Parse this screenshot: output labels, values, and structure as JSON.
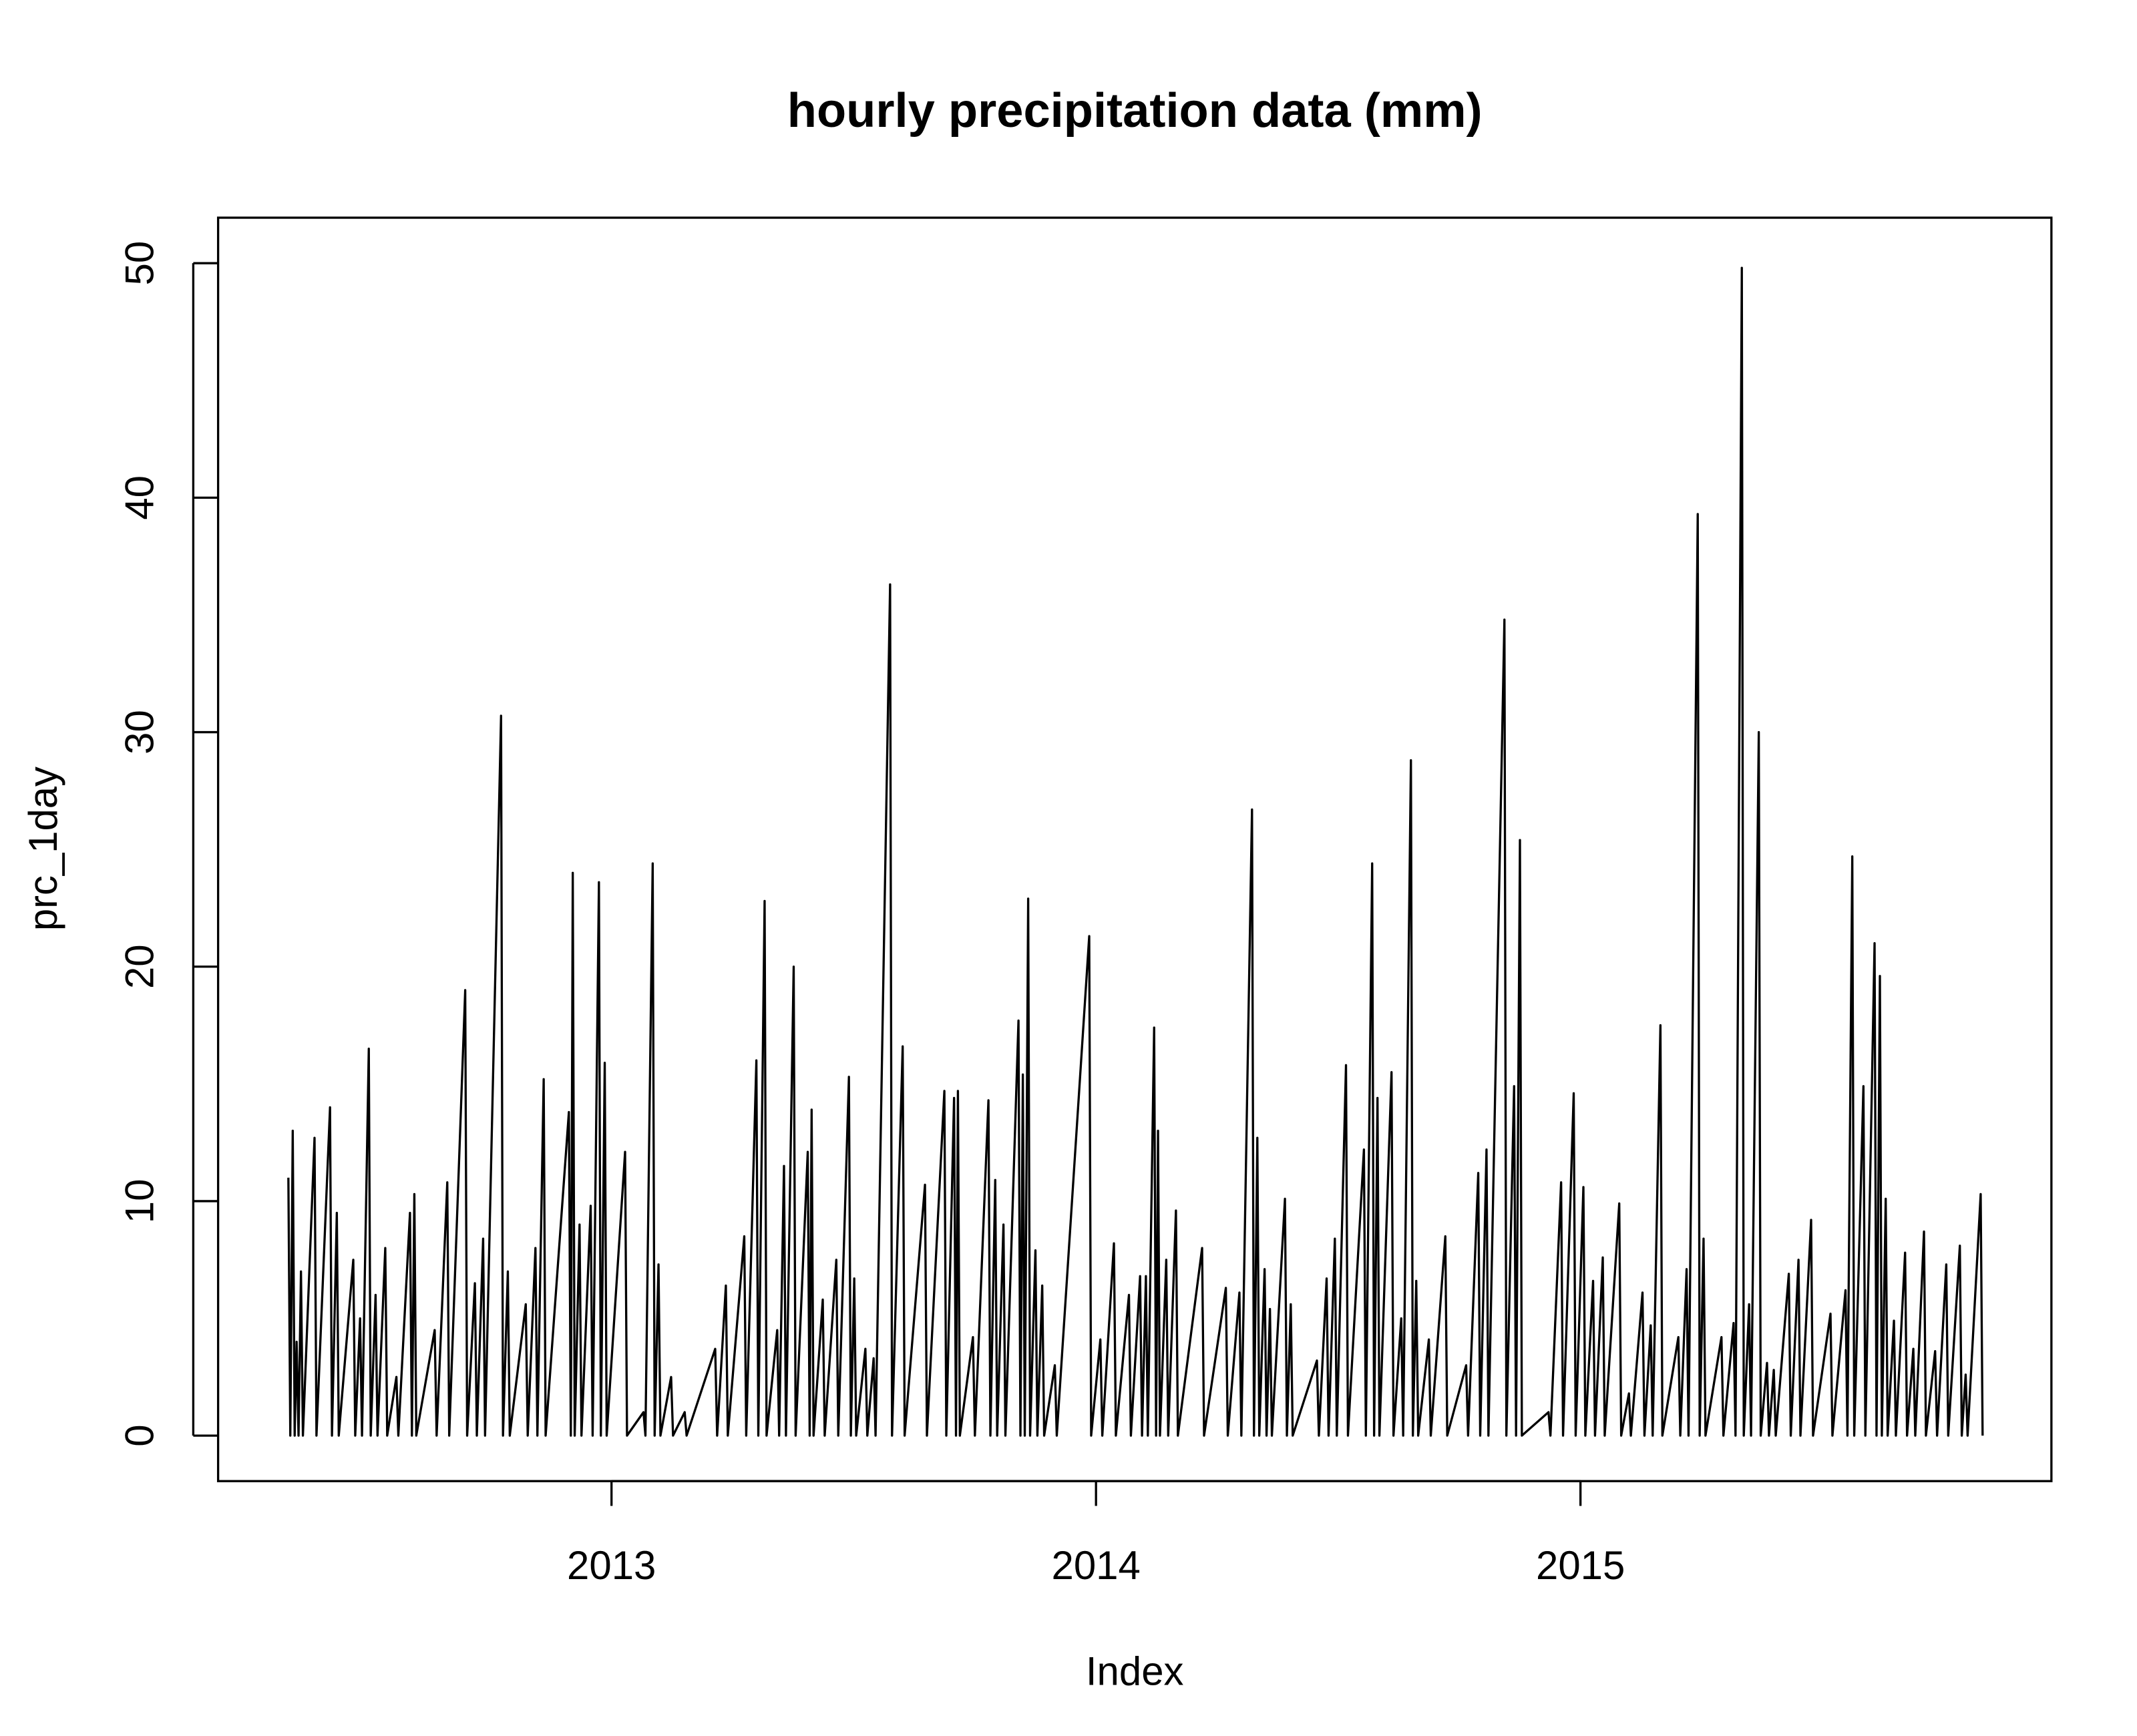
{
  "chart_data": {
    "type": "line",
    "title": "hourly precipitation data (mm)",
    "x_label": "Index",
    "y_label": "prc_1day",
    "color": "#000000",
    "xlim": [
      2012.188,
      2015.972
    ],
    "xticks": [
      2013,
      2014,
      2015
    ],
    "ylim": [
      -1.94,
      51.94
    ],
    "yticks": [
      0,
      10,
      20,
      30,
      40,
      50
    ],
    "x": [
      2012.333,
      2012.337,
      2012.342,
      2012.346,
      2012.35,
      2012.354,
      2012.359,
      2012.363,
      2012.387,
      2012.391,
      2012.419,
      2012.423,
      2012.433,
      2012.437,
      2012.467,
      2012.471,
      2012.481,
      2012.485,
      2012.499,
      2012.503,
      2012.513,
      2012.517,
      2012.533,
      2012.537,
      2012.556,
      2012.56,
      2012.584,
      2012.588,
      2012.593,
      2012.597,
      2012.635,
      2012.639,
      2012.661,
      2012.665,
      2012.698,
      2012.702,
      2012.718,
      2012.722,
      2012.735,
      2012.739,
      2012.772,
      2012.776,
      2012.786,
      2012.79,
      2012.823,
      2012.827,
      2012.843,
      2012.847,
      2012.86,
      2012.864,
      2012.912,
      2012.916,
      2012.92,
      2012.924,
      2012.934,
      2012.938,
      2012.957,
      2012.961,
      2012.974,
      2012.978,
      2012.986,
      2012.99,
      2013.028,
      2013.032,
      2013.066,
      2013.07,
      2013.085,
      2013.089,
      2013.097,
      2013.101,
      2013.123,
      2013.127,
      2013.151,
      2013.155,
      2013.214,
      2013.218,
      2013.236,
      2013.24,
      2013.274,
      2013.278,
      2013.299,
      2013.303,
      2013.316,
      2013.32,
      2013.342,
      2013.346,
      2013.356,
      2013.36,
      2013.376,
      2013.38,
      2013.405,
      2013.409,
      2013.413,
      2013.417,
      2013.436,
      2013.44,
      2013.464,
      2013.468,
      2013.49,
      2013.494,
      2013.501,
      2013.505,
      2013.524,
      2013.528,
      2013.541,
      2013.545,
      2013.575,
      2013.579,
      2013.601,
      2013.605,
      2013.647,
      2013.651,
      2013.687,
      2013.691,
      2013.707,
      2013.711,
      2013.715,
      2013.719,
      2013.746,
      2013.75,
      2013.778,
      2013.782,
      2013.792,
      2013.796,
      2013.809,
      2013.813,
      2013.84,
      2013.844,
      2013.849,
      2013.853,
      2013.86,
      2013.864,
      2013.875,
      2013.879,
      2013.889,
      2013.893,
      2013.915,
      2013.919,
      2013.986,
      2013.99,
      2014.009,
      2014.013,
      2014.037,
      2014.041,
      2014.068,
      2014.072,
      2014.091,
      2014.095,
      2014.103,
      2014.107,
      2014.12,
      2014.124,
      2014.128,
      2014.132,
      2014.145,
      2014.149,
      2014.165,
      2014.169,
      2014.219,
      2014.223,
      2014.268,
      2014.272,
      2014.296,
      2014.3,
      2014.322,
      2014.326,
      2014.333,
      2014.337,
      2014.348,
      2014.352,
      2014.359,
      2014.363,
      2014.39,
      2014.394,
      2014.402,
      2014.406,
      2014.456,
      2014.46,
      2014.476,
      2014.48,
      2014.493,
      2014.497,
      2014.516,
      2014.52,
      2014.553,
      2014.557,
      2014.57,
      2014.574,
      2014.581,
      2014.585,
      2014.61,
      2014.614,
      2014.63,
      2014.634,
      2014.65,
      2014.654,
      2014.661,
      2014.665,
      2014.687,
      2014.691,
      2014.721,
      2014.725,
      2014.764,
      2014.768,
      2014.789,
      2014.793,
      2014.806,
      2014.81,
      2014.843,
      2014.847,
      2014.863,
      2014.867,
      2014.875,
      2014.879,
      2014.934,
      2014.938,
      2014.96,
      2014.964,
      2014.986,
      2014.99,
      2015.006,
      2015.01,
      2015.026,
      2015.03,
      2015.046,
      2015.05,
      2015.08,
      2015.084,
      2015.1,
      2015.104,
      2015.128,
      2015.132,
      2015.145,
      2015.149,
      2015.165,
      2015.169,
      2015.202,
      2015.206,
      2015.219,
      2015.223,
      2015.242,
      2015.246,
      2015.254,
      2015.258,
      2015.291,
      2015.295,
      2015.316,
      2015.32,
      2015.333,
      2015.337,
      2015.348,
      2015.352,
      2015.368,
      2015.372,
      2015.385,
      2015.389,
      2015.399,
      2015.403,
      2015.43,
      2015.434,
      2015.45,
      2015.454,
      2015.476,
      2015.48,
      2015.516,
      2015.52,
      2015.547,
      2015.551,
      2015.561,
      2015.565,
      2015.584,
      2015.588,
      2015.607,
      2015.611,
      2015.618,
      2015.622,
      2015.63,
      2015.634,
      2015.647,
      2015.651,
      2015.67,
      2015.674,
      2015.687,
      2015.691,
      2015.709,
      2015.713,
      2015.732,
      2015.736,
      2015.755,
      2015.759,
      2015.783,
      2015.787,
      2015.795,
      2015.799,
      2015.826,
      2015.83
    ],
    "values": [
      11,
      0,
      13,
      0,
      4,
      0,
      7,
      0,
      12.7,
      0,
      14,
      0,
      9.5,
      0,
      7.5,
      0,
      5,
      0,
      16.5,
      0,
      6,
      0,
      8,
      0,
      2.5,
      0,
      9.5,
      0,
      10.3,
      0,
      4.5,
      0,
      10.8,
      0,
      19,
      0,
      6.5,
      0,
      8.4,
      0,
      30.7,
      0,
      7,
      0,
      5.6,
      0,
      8,
      0,
      15.2,
      0,
      13.8,
      0,
      24,
      0,
      9,
      0,
      9.8,
      0,
      23.6,
      0,
      15.9,
      0,
      12.1,
      0,
      1,
      0,
      24.4,
      0,
      7.3,
      0,
      2.5,
      0,
      1,
      0,
      3.7,
      0,
      6.4,
      0,
      8.5,
      0,
      16,
      0,
      22.8,
      0,
      4.5,
      0,
      11.5,
      0,
      20,
      0,
      12.1,
      0,
      13.9,
      0,
      5.8,
      0,
      7.5,
      0,
      15.3,
      0,
      6.7,
      0,
      3.7,
      0,
      3.3,
      0,
      36.3,
      0,
      16.6,
      0,
      10.7,
      0,
      14.7,
      0,
      14.4,
      0,
      14.7,
      0,
      4.2,
      0,
      14.3,
      0,
      10.9,
      0,
      9,
      0,
      17.7,
      0,
      15.4,
      0,
      22.9,
      0,
      7.9,
      0,
      6.4,
      0,
      3,
      0,
      21.3,
      0,
      4.1,
      0,
      8.2,
      0,
      6,
      0,
      6.8,
      0,
      6.8,
      0,
      17.4,
      0,
      13,
      0,
      7.5,
      0,
      9.6,
      0,
      8,
      0,
      6.3,
      0,
      6.1,
      0,
      26.7,
      0,
      12.7,
      0,
      7.1,
      0,
      5.4,
      0,
      10.1,
      0,
      5.6,
      0,
      3.2,
      0,
      6.7,
      0,
      8.4,
      0,
      15.8,
      0,
      12.2,
      0,
      24.4,
      0,
      14.4,
      0,
      15.5,
      0,
      5,
      0,
      28.8,
      0,
      6.6,
      0,
      4.1,
      0,
      8.5,
      0,
      3,
      0,
      11.2,
      0,
      12.2,
      0,
      34.8,
      0,
      14.9,
      0,
      25.4,
      0,
      1,
      0,
      10.8,
      0,
      14.6,
      0,
      10.6,
      0,
      6.6,
      0,
      7.6,
      0,
      9.9,
      0,
      1.8,
      0,
      6.1,
      0,
      4.7,
      0,
      17.5,
      0,
      4.2,
      0,
      7.1,
      0,
      39.3,
      0,
      8.4,
      0,
      4.2,
      0,
      4.8,
      0,
      49.8,
      0,
      5.6,
      0,
      30,
      0,
      3.1,
      0,
      2.8,
      0,
      6.9,
      0,
      7.5,
      0,
      9.2,
      0,
      5.2,
      0,
      6.2,
      0,
      24.7,
      0,
      14.9,
      0,
      21,
      0,
      19.6,
      0,
      10.1,
      0,
      4.9,
      0,
      7.8,
      0,
      3.7,
      0,
      8.7,
      0,
      3.6,
      0,
      7.3,
      0,
      8.1,
      0,
      2.6,
      0,
      10.3,
      0
    ]
  }
}
